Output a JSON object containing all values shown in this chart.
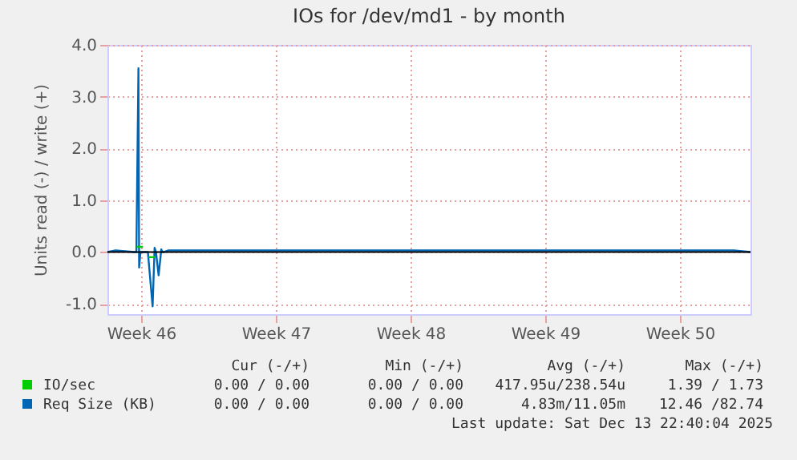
{
  "chart_data": {
    "type": "line",
    "title": "IOs for /dev/md1 - by month",
    "ylabel": "Units read (-) / write (+)",
    "x": [
      "2025-11-10T12:40",
      "2025-11-10T22:45",
      "2025-11-11T22:15",
      "2025-11-12T00:45",
      "2025-11-12T03:20",
      "2025-11-12T04:10",
      "2025-11-12T05:50",
      "2025-11-12T15:05",
      "2025-11-12T21:00",
      "2025-11-12T23:30",
      "2025-11-13T01:10",
      "2025-11-13T04:30",
      "2025-11-13T07:50",
      "2025-11-13T09:35",
      "2025-11-13T11:15",
      "2025-11-13T16:15",
      "2025-11-14T00:40",
      "2025-11-14T10:40",
      "2025-11-14T14:05",
      "2025-11-16T11:30",
      "2025-11-18T00:30",
      "2025-11-19T05:00",
      "2025-11-21T00:40",
      "2025-11-24T00:40",
      "2025-11-25T00:30",
      "2025-11-26T23:30",
      "2025-11-27T23:00",
      "2025-11-30T00:40",
      "2025-12-01T00:15",
      "2025-12-03T01:00",
      "2025-12-06T11:15",
      "2025-12-07T04:05",
      "2025-12-13T01:40",
      "2025-12-13T22:40"
    ],
    "series": [
      {
        "name": "IO/sec",
        "color": "#00cc00",
        "x": [
          "2025-11-12T01:00",
          "2025-11-12T09:00",
          "2025-11-12T12:00",
          "2025-11-12T16:00",
          "2025-11-13T00:00"
        ],
        "values": [
          0.1,
          0.1,
          null,
          -0.1,
          -0.1
        ]
      },
      {
        "name": "Req Size (KB)",
        "color": "#0066b3",
        "values": [
          0,
          0.03,
          0,
          0,
          3.55,
          -0.3,
          0,
          0,
          -1.05,
          0.08,
          0,
          -0.45,
          0.05,
          0,
          0,
          0.03,
          0.03,
          0.03,
          0.03,
          0.03,
          0.03,
          0.03,
          0.03,
          0.03,
          0.03,
          0.03,
          0.03,
          0.03,
          0.03,
          0.03,
          0.03,
          0.03,
          0.03,
          0
        ]
      }
    ],
    "xlim": [
      "2025-11-10T12:40",
      "2025-12-13T22:40"
    ],
    "xticks": [
      {
        "value": "2025-11-12T06:40",
        "label": "Week 46"
      },
      {
        "value": "2025-11-19T06:40",
        "label": "Week 47"
      },
      {
        "value": "2025-11-26T06:40",
        "label": "Week 48"
      },
      {
        "value": "2025-12-03T06:40",
        "label": "Week 49"
      },
      {
        "value": "2025-12-10T06:40",
        "label": "Week 50"
      }
    ],
    "ylim": [
      -1.2,
      4.0
    ],
    "yticks": [
      {
        "value": -1,
        "label": "-1.0"
      },
      {
        "value": 0,
        "label": "0.0"
      },
      {
        "value": 1,
        "label": "1.0"
      },
      {
        "value": 2,
        "label": "2.0"
      },
      {
        "value": 3,
        "label": "3.0"
      },
      {
        "value": 4,
        "label": "4.0"
      }
    ],
    "grid": true,
    "legend": "bottom",
    "marker": "none",
    "line_style": "solid",
    "ref_lines": [
      {
        "axis": "y",
        "value": 0,
        "color": "#000000"
      }
    ],
    "annotations": [
      "Cur (-/+)",
      "Min (-/+)",
      "Avg (-/+)",
      "Max (-/+)",
      "0.00 / 0.00",
      "0.00 / 0.00",
      "417.95u/238.54u",
      "1.39 / 1.73",
      "0.00 / 0.00",
      "0.00 / 0.00",
      "4.83m/11.05m",
      "12.46 /82.74",
      "Last update: Sat Dec 13 22:40:04 2025"
    ]
  }
}
